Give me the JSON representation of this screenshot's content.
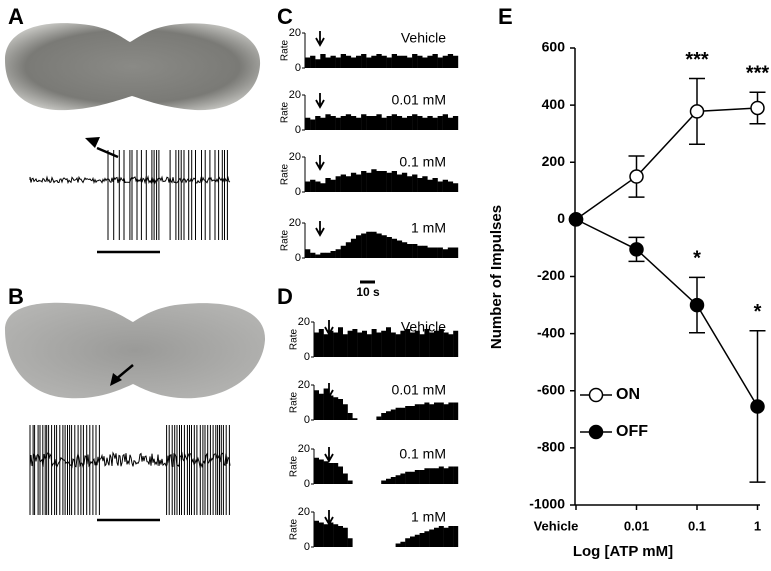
{
  "panel_labels": [
    "A",
    "B",
    "C",
    "D",
    "E"
  ],
  "scale_bar": "10 s",
  "chart_data": [
    {
      "type": "bar",
      "ylabel": "Rate",
      "label": "Vehicle",
      "color": "#000000",
      "ylim": [
        0,
        20
      ],
      "yticks": [
        0,
        20
      ],
      "values": [
        6,
        7,
        5,
        8,
        6,
        7,
        6,
        8,
        7,
        6,
        7,
        8,
        6,
        7,
        8,
        7,
        6,
        8,
        7,
        7,
        6,
        8,
        7,
        6,
        7,
        8,
        6,
        7,
        8,
        7
      ]
    },
    {
      "type": "bar",
      "ylabel": "Rate",
      "label": "0.01 mM",
      "color": "#000000",
      "ylim": [
        0,
        20
      ],
      "yticks": [
        0,
        20
      ],
      "values": [
        7,
        6,
        8,
        7,
        9,
        8,
        7,
        8,
        9,
        8,
        7,
        9,
        8,
        8,
        9,
        7,
        8,
        9,
        8,
        7,
        8,
        9,
        8,
        7,
        8,
        7,
        8,
        9,
        7,
        8
      ]
    },
    {
      "type": "bar",
      "ylabel": "Rate",
      "label": "0.1 mM",
      "color": "#000000",
      "ylim": [
        0,
        20
      ],
      "yticks": [
        0,
        20
      ],
      "values": [
        6,
        7,
        6,
        5,
        8,
        7,
        9,
        10,
        9,
        11,
        10,
        12,
        11,
        13,
        12,
        12,
        11,
        12,
        10,
        11,
        9,
        10,
        8,
        9,
        7,
        8,
        6,
        7,
        6,
        5
      ]
    },
    {
      "type": "bar",
      "ylabel": "Rate",
      "label": "1 mM",
      "color": "#000000",
      "ylim": [
        0,
        20
      ],
      "yticks": [
        0,
        20
      ],
      "values": [
        5,
        3,
        2,
        3,
        3,
        4,
        5,
        7,
        9,
        11,
        13,
        14,
        15,
        15,
        14,
        13,
        12,
        11,
        10,
        9,
        8,
        8,
        7,
        7,
        6,
        6,
        6,
        5,
        6,
        6
      ]
    },
    {
      "type": "bar",
      "ylabel": "Rate",
      "label": "Vehicle",
      "color": "#000000",
      "ylim": [
        0,
        20
      ],
      "yticks": [
        0,
        20
      ],
      "values": [
        14,
        16,
        13,
        15,
        14,
        17,
        13,
        15,
        16,
        14,
        15,
        13,
        16,
        14,
        15,
        17,
        14,
        13,
        15,
        16,
        14,
        15,
        13,
        16,
        14,
        15,
        16,
        14,
        13,
        15
      ]
    },
    {
      "type": "bar",
      "ylabel": "Rate",
      "label": "0.01 mM",
      "color": "#000000",
      "ylim": [
        0,
        20
      ],
      "yticks": [
        0,
        20
      ],
      "values": [
        17,
        15,
        18,
        14,
        13,
        12,
        9,
        4,
        1,
        0,
        0,
        0,
        0,
        2,
        4,
        5,
        6,
        7,
        7,
        8,
        8,
        9,
        9,
        10,
        9,
        10,
        10,
        9,
        10,
        10
      ]
    },
    {
      "type": "bar",
      "ylabel": "Rate",
      "label": "0.1 mM",
      "color": "#000000",
      "ylim": [
        0,
        20
      ],
      "yticks": [
        0,
        20
      ],
      "values": [
        15,
        14,
        13,
        12,
        12,
        10,
        6,
        2,
        0,
        0,
        0,
        0,
        0,
        0,
        2,
        3,
        4,
        5,
        6,
        7,
        7,
        8,
        8,
        9,
        9,
        9,
        10,
        9,
        10,
        10
      ]
    },
    {
      "type": "bar",
      "ylabel": "Rate",
      "label": "1 mM",
      "color": "#000000",
      "ylim": [
        0,
        20
      ],
      "yticks": [
        0,
        20
      ],
      "values": [
        15,
        14,
        13,
        14,
        13,
        12,
        11,
        5,
        0,
        0,
        0,
        0,
        0,
        0,
        0,
        0,
        0,
        2,
        3,
        5,
        6,
        7,
        8,
        9,
        10,
        11,
        12,
        11,
        12,
        12
      ]
    },
    {
      "type": "line",
      "xlabel": "Log [ATP mM]",
      "ylabel": "Number of Impulses",
      "categories": [
        "Vehicle",
        "0.01",
        "0.1",
        "1"
      ],
      "ylim": [
        -1000,
        600
      ],
      "yticks": [
        -1000,
        -800,
        -600,
        -400,
        -200,
        0,
        200,
        400,
        600
      ],
      "series": [
        {
          "name": "ON",
          "color": "#ffffff",
          "values": [
            0,
            150,
            378,
            390
          ],
          "errors": [
            0,
            72,
            115,
            55
          ],
          "significance": [
            null,
            null,
            "***",
            "***"
          ]
        },
        {
          "name": "OFF",
          "color": "#000000",
          "values": [
            0,
            -105,
            -300,
            -655
          ],
          "errors": [
            0,
            42,
            97,
            265
          ],
          "significance": [
            null,
            null,
            "*",
            "*"
          ]
        }
      ]
    }
  ]
}
